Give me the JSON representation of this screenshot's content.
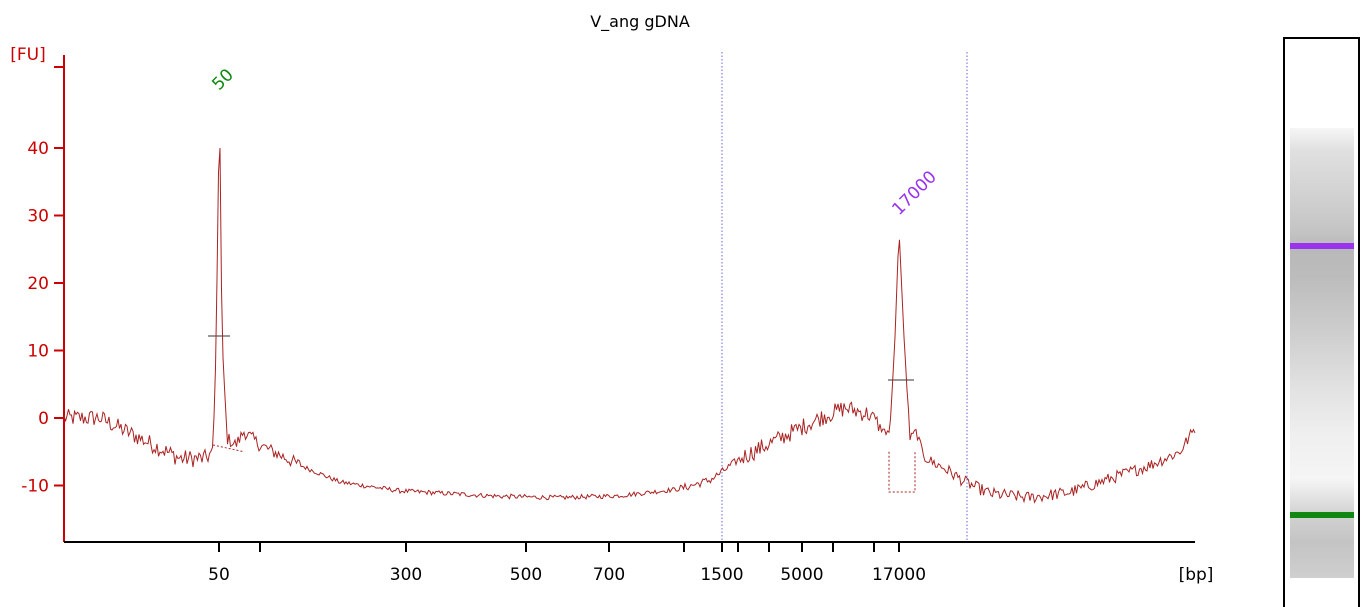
{
  "chart_data": {
    "type": "line",
    "title": "V_ang gDNA",
    "ylabel": "[FU]",
    "xlabel": "[bp]",
    "ylim": [
      -18,
      50
    ],
    "yticks": [
      -10,
      0,
      10,
      20,
      30,
      40
    ],
    "xtick_labels": [
      "50",
      "300",
      "500",
      "700",
      "1500",
      "5000",
      "17000"
    ],
    "peaks": [
      {
        "label": "50",
        "size_bp": 50,
        "height_fu": 47,
        "color": "#118811"
      },
      {
        "label": "17000",
        "size_bp": 17000,
        "height_fu": 28,
        "color": "#9933ee"
      }
    ],
    "colors": {
      "axis": "#cc0000",
      "trace": "#aa2222",
      "region": "#6a66dd"
    },
    "series": [
      {
        "values": [
          0,
          -2,
          -4,
          -7,
          -5,
          47,
          -4,
          -3,
          -6,
          -8,
          -9,
          -10,
          -11,
          -11,
          -11,
          -12,
          -12,
          -12,
          -11.5,
          -11,
          -10,
          -8,
          -4,
          -1,
          1,
          2,
          0,
          28,
          -4,
          -8,
          -10,
          -11,
          -12,
          -11,
          -9,
          -7,
          -5,
          -2
        ]
      }
    ]
  },
  "gel": {
    "bands": [
      {
        "label": "17000",
        "color": "#9933ee"
      },
      {
        "label": "50",
        "color": "#118811"
      }
    ]
  }
}
